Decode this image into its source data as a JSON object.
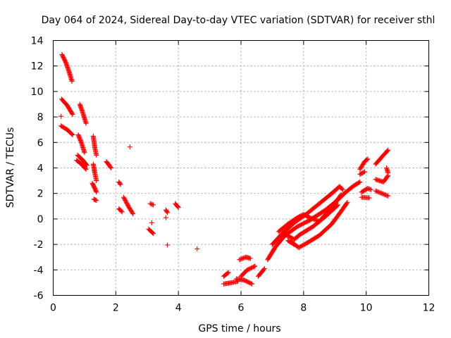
{
  "chart_data": {
    "type": "scatter",
    "title": "Day 064 of 2024, Sidereal Day-to-day VTEC variation (SDTVAR) for receiver sthl",
    "xlabel": "GPS time / hours",
    "ylabel": "SDTVAR / TECUs",
    "xlim": [
      0,
      12
    ],
    "ylim": [
      -6,
      14
    ],
    "xticks": [
      0,
      2,
      4,
      6,
      8,
      10,
      12
    ],
    "yticks": [
      -6,
      -4,
      -2,
      0,
      2,
      4,
      6,
      8,
      10,
      12,
      14
    ],
    "grid": true,
    "marker": "plus",
    "color": "#ff0000",
    "tracks": [
      [
        [
          0.28,
          12.9
        ],
        [
          0.4,
          12.3
        ],
        [
          0.5,
          11.6
        ],
        [
          0.6,
          10.8
        ]
      ],
      [
        [
          0.27,
          9.4
        ],
        [
          0.45,
          8.9
        ],
        [
          0.62,
          8.2
        ]
      ],
      [
        [
          0.25,
          7.3
        ],
        [
          0.45,
          7.0
        ],
        [
          0.62,
          6.6
        ]
      ],
      [
        [
          0.25,
          8.05
        ]
      ],
      [
        [
          0.8,
          6.6
        ],
        [
          0.9,
          6.0
        ],
        [
          1.0,
          5.2
        ]
      ],
      [
        [
          0.85,
          9.0
        ],
        [
          0.95,
          8.3
        ],
        [
          1.05,
          7.5
        ]
      ],
      [
        [
          0.75,
          4.6
        ],
        [
          0.9,
          4.3
        ],
        [
          1.05,
          3.9
        ]
      ],
      [
        [
          0.78,
          5.0
        ],
        [
          0.95,
          4.6
        ],
        [
          1.08,
          4.2
        ]
      ],
      [
        [
          1.28,
          6.5
        ],
        [
          1.33,
          5.6
        ],
        [
          1.38,
          5.0
        ]
      ],
      [
        [
          1.28,
          4.3
        ],
        [
          1.33,
          3.6
        ],
        [
          1.38,
          3.0
        ]
      ],
      [
        [
          1.25,
          2.8
        ],
        [
          1.33,
          2.4
        ],
        [
          1.38,
          2.1
        ]
      ],
      [
        [
          1.3,
          1.55
        ],
        [
          1.38,
          1.45
        ]
      ],
      [
        [
          1.7,
          4.5
        ],
        [
          1.85,
          4.0
        ]
      ],
      [
        [
          2.1,
          2.9
        ],
        [
          2.15,
          2.7
        ]
      ],
      [
        [
          2.1,
          0.8
        ],
        [
          2.2,
          0.55
        ]
      ],
      [
        [
          2.25,
          1.7
        ],
        [
          2.4,
          1.0
        ],
        [
          2.55,
          0.4
        ]
      ],
      [
        [
          2.45,
          5.65
        ]
      ],
      [
        [
          3.1,
          1.2
        ],
        [
          3.2,
          1.1
        ]
      ],
      [
        [
          3.05,
          -0.8
        ],
        [
          3.2,
          -1.15
        ]
      ],
      [
        [
          3.15,
          -0.3
        ]
      ],
      [
        [
          3.6,
          0.7
        ],
        [
          3.65,
          0.5
        ]
      ],
      [
        [
          3.6,
          0.1
        ]
      ],
      [
        [
          3.65,
          -2.05
        ]
      ],
      [
        [
          3.9,
          1.2
        ],
        [
          4.0,
          0.9
        ]
      ],
      [
        [
          4.6,
          -2.35
        ]
      ],
      [
        [
          5.45,
          -5.1
        ],
        [
          5.7,
          -5.0
        ],
        [
          5.9,
          -4.9
        ]
      ],
      [
        [
          5.45,
          -4.5
        ],
        [
          5.6,
          -4.2
        ]
      ],
      [
        [
          5.85,
          -4.7
        ],
        [
          6.1,
          -4.8
        ],
        [
          6.35,
          -5.1
        ]
      ],
      [
        [
          6.0,
          -4.5
        ],
        [
          6.2,
          -4.0
        ],
        [
          6.45,
          -3.7
        ]
      ],
      [
        [
          5.95,
          -3.2
        ],
        [
          6.15,
          -3.0
        ],
        [
          6.3,
          -3.1
        ]
      ],
      [
        [
          6.55,
          -4.5
        ],
        [
          6.75,
          -3.9
        ]
      ],
      [
        [
          6.85,
          -3.2
        ],
        [
          7.1,
          -2.2
        ],
        [
          7.4,
          -1.3
        ],
        [
          7.8,
          -0.6
        ],
        [
          8.2,
          -0.1
        ],
        [
          8.7,
          0.7
        ],
        [
          9.1,
          1.5
        ],
        [
          9.3,
          2.0
        ],
        [
          9.6,
          2.6
        ],
        [
          9.8,
          2.9
        ]
      ],
      [
        [
          7.0,
          -2.0
        ],
        [
          7.3,
          -1.2
        ],
        [
          7.7,
          -0.3
        ],
        [
          8.1,
          0.4
        ],
        [
          8.5,
          1.2
        ],
        [
          8.9,
          2.0
        ],
        [
          9.15,
          2.55
        ],
        [
          9.25,
          2.3
        ]
      ],
      [
        [
          7.2,
          -1.0
        ],
        [
          7.5,
          -0.4
        ],
        [
          7.8,
          0.1
        ],
        [
          8.0,
          0.35
        ],
        [
          8.2,
          0.1
        ],
        [
          8.5,
          -0.2
        ],
        [
          8.9,
          0.9
        ],
        [
          9.2,
          1.9
        ]
      ],
      [
        [
          7.4,
          -1.2
        ],
        [
          7.7,
          -1.6
        ],
        [
          7.9,
          -1.2
        ],
        [
          8.3,
          -0.6
        ],
        [
          8.7,
          0.2
        ],
        [
          9.1,
          1.1
        ]
      ],
      [
        [
          7.6,
          -1.8
        ],
        [
          7.85,
          -2.25
        ],
        [
          8.1,
          -1.9
        ],
        [
          8.5,
          -1.3
        ],
        [
          8.9,
          -0.4
        ],
        [
          9.2,
          0.6
        ],
        [
          9.4,
          1.3
        ]
      ],
      [
        [
          7.5,
          -1.7
        ],
        [
          7.7,
          -2.0
        ]
      ],
      [
        [
          9.8,
          3.9
        ],
        [
          9.95,
          4.5
        ],
        [
          10.05,
          4.7
        ]
      ],
      [
        [
          9.8,
          3.5
        ],
        [
          9.95,
          3.7
        ]
      ],
      [
        [
          9.85,
          2.1
        ],
        [
          10.05,
          2.4
        ],
        [
          10.15,
          2.3
        ]
      ],
      [
        [
          9.85,
          1.7
        ],
        [
          10.1,
          1.65
        ]
      ],
      [
        [
          10.3,
          4.3
        ],
        [
          10.55,
          5.0
        ],
        [
          10.7,
          5.4
        ]
      ],
      [
        [
          10.3,
          3.1
        ],
        [
          10.55,
          2.9
        ],
        [
          10.7,
          3.4
        ]
      ],
      [
        [
          10.3,
          2.2
        ],
        [
          10.5,
          2.0
        ],
        [
          10.7,
          1.8
        ]
      ],
      [
        [
          10.65,
          4.0
        ],
        [
          10.7,
          3.6
        ]
      ]
    ]
  }
}
